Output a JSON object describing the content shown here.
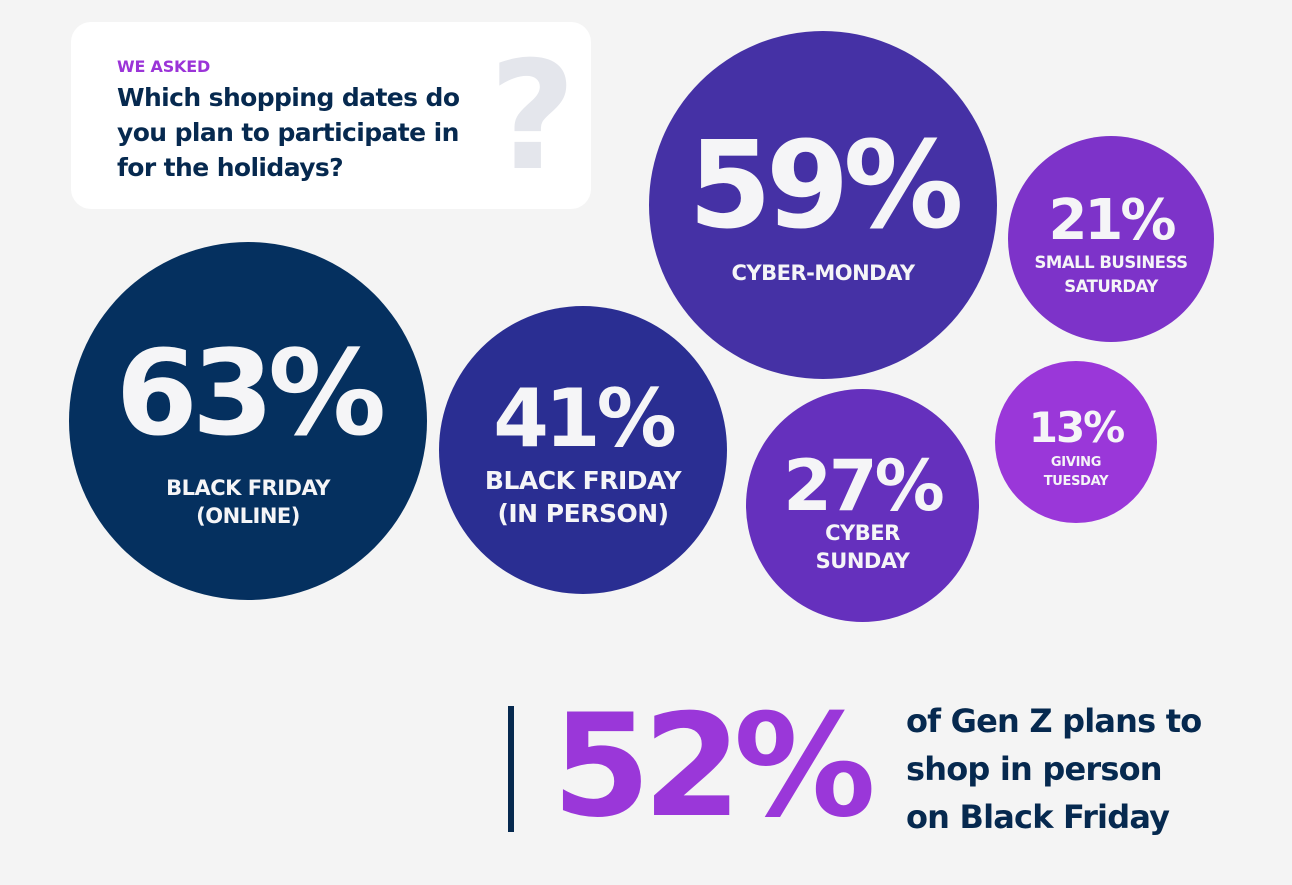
{
  "question_card": {
    "kicker": "WE ASKED",
    "question": "Which shopping dates do you plan to participate in for the holidays?",
    "icon": "question-mark-icon"
  },
  "chart_data": {
    "type": "bubble",
    "title": "Which shopping dates do you plan to participate in for the holidays?",
    "categories": [
      "BLACK FRIDAY (ONLINE)",
      "BLACK FRIDAY (IN PERSON)",
      "CYBER-MONDAY",
      "SMALL BUSINESS SATURDAY",
      "CYBER SUNDAY",
      "GIVING TUESDAY"
    ],
    "values": [
      63,
      41,
      59,
      21,
      27,
      13
    ],
    "unit": "%",
    "points": [
      {
        "id": "black-friday-online",
        "value": 63,
        "value_label": "63%",
        "label_lines": [
          "BLACK FRIDAY",
          "(ONLINE)"
        ],
        "color": "#05305f"
      },
      {
        "id": "black-friday-in-person",
        "value": 41,
        "value_label": "41%",
        "label_lines": [
          "BLACK FRIDAY",
          "(IN PERSON)"
        ],
        "color": "#2a2e92"
      },
      {
        "id": "cyber-monday",
        "value": 59,
        "value_label": "59%",
        "label_lines": [
          "CYBER-MONDAY"
        ],
        "color": "#4531a5"
      },
      {
        "id": "small-business-saturday",
        "value": 21,
        "value_label": "21%",
        "label_lines": [
          "SMALL BUSINESS",
          "SATURDAY"
        ],
        "color": "#7d33c9"
      },
      {
        "id": "cyber-sunday",
        "value": 27,
        "value_label": "27%",
        "label_lines": [
          "CYBER",
          "SUNDAY"
        ],
        "color": "#6530bd"
      },
      {
        "id": "giving-tuesday",
        "value": 13,
        "value_label": "13%",
        "label_lines": [
          "GIVING",
          "TUESDAY"
        ],
        "color": "#9a37d9"
      }
    ]
  },
  "highlight": {
    "value": 52,
    "value_label": "52%",
    "text_lines": [
      "of Gen Z plans to",
      "shop in person",
      "on Black Friday"
    ],
    "value_color": "#9a37d9",
    "text_color": "#06294f"
  }
}
